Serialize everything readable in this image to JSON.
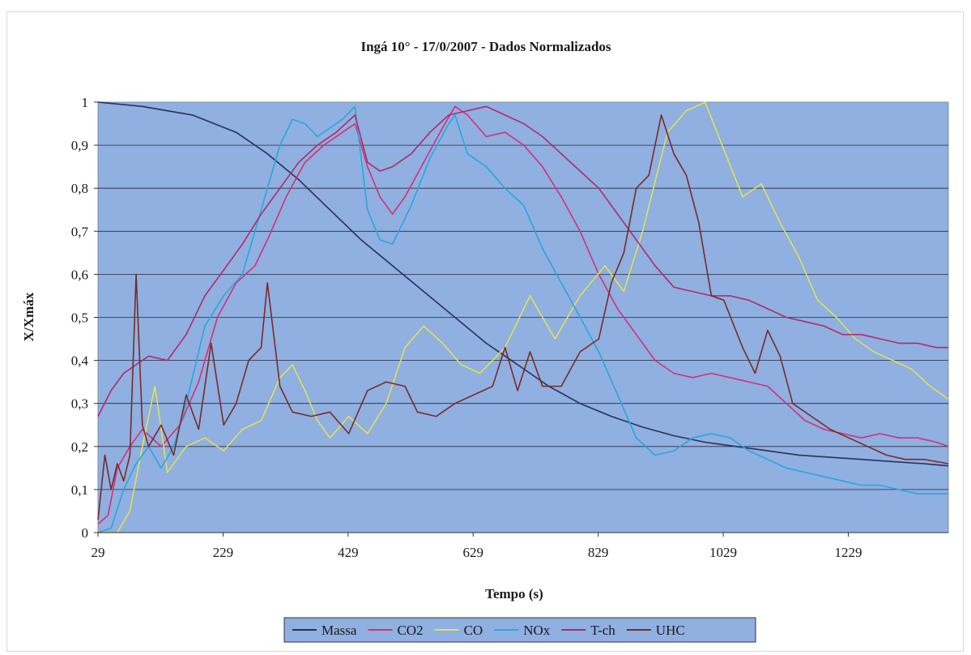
{
  "chart_data": {
    "type": "line",
    "title": "Ingá 10°  - 17/0/2007 - Dados Normalizados",
    "xlabel": "Tempo (s)",
    "ylabel": "X/Xmáx",
    "xlim": [
      29,
      1389
    ],
    "ylim": [
      0,
      1
    ],
    "x_ticks": [
      "29",
      "229",
      "429",
      "629",
      "829",
      "1029",
      "1229"
    ],
    "x_tick_values": [
      29,
      229,
      429,
      629,
      829,
      1029,
      1229
    ],
    "y_ticks": [
      "0",
      "0,1",
      "0,2",
      "0,3",
      "0,4",
      "0,5",
      "0,6",
      "0,7",
      "0,8",
      "0,9",
      "1"
    ],
    "y_tick_values": [
      0,
      0.1,
      0.2,
      0.3,
      0.4,
      0.5,
      0.6,
      0.7,
      0.8,
      0.9,
      1
    ],
    "grid": true,
    "legend_position": "bottom",
    "plot_background": "#8fb0e0",
    "series": [
      {
        "name": "Massa",
        "color": "#2b2f5a",
        "points": [
          [
            29,
            1
          ],
          [
            100,
            0.99
          ],
          [
            180,
            0.97
          ],
          [
            250,
            0.93
          ],
          [
            300,
            0.88
          ],
          [
            350,
            0.82
          ],
          [
            400,
            0.75
          ],
          [
            450,
            0.68
          ],
          [
            500,
            0.62
          ],
          [
            550,
            0.56
          ],
          [
            600,
            0.5
          ],
          [
            650,
            0.44
          ],
          [
            700,
            0.39
          ],
          [
            750,
            0.34
          ],
          [
            800,
            0.3
          ],
          [
            850,
            0.27
          ],
          [
            900,
            0.245
          ],
          [
            950,
            0.225
          ],
          [
            1000,
            0.21
          ],
          [
            1050,
            0.2
          ],
          [
            1100,
            0.19
          ],
          [
            1150,
            0.18
          ],
          [
            1200,
            0.175
          ],
          [
            1250,
            0.17
          ],
          [
            1300,
            0.165
          ],
          [
            1350,
            0.16
          ],
          [
            1389,
            0.155
          ]
        ]
      },
      {
        "name": "CO2",
        "color": "#d4307a",
        "points": [
          [
            29,
            0.02
          ],
          [
            45,
            0.04
          ],
          [
            60,
            0.15
          ],
          [
            80,
            0.2
          ],
          [
            100,
            0.24
          ],
          [
            130,
            0.2
          ],
          [
            160,
            0.25
          ],
          [
            190,
            0.35
          ],
          [
            220,
            0.5
          ],
          [
            250,
            0.58
          ],
          [
            280,
            0.62
          ],
          [
            300,
            0.68
          ],
          [
            330,
            0.78
          ],
          [
            360,
            0.86
          ],
          [
            390,
            0.9
          ],
          [
            420,
            0.93
          ],
          [
            440,
            0.95
          ],
          [
            460,
            0.85
          ],
          [
            480,
            0.78
          ],
          [
            500,
            0.74
          ],
          [
            520,
            0.78
          ],
          [
            550,
            0.86
          ],
          [
            580,
            0.94
          ],
          [
            600,
            0.99
          ],
          [
            620,
            0.97
          ],
          [
            650,
            0.92
          ],
          [
            680,
            0.93
          ],
          [
            710,
            0.9
          ],
          [
            740,
            0.85
          ],
          [
            770,
            0.78
          ],
          [
            800,
            0.7
          ],
          [
            830,
            0.6
          ],
          [
            860,
            0.52
          ],
          [
            890,
            0.46
          ],
          [
            920,
            0.4
          ],
          [
            950,
            0.37
          ],
          [
            980,
            0.36
          ],
          [
            1010,
            0.37
          ],
          [
            1040,
            0.36
          ],
          [
            1070,
            0.35
          ],
          [
            1100,
            0.34
          ],
          [
            1130,
            0.3
          ],
          [
            1160,
            0.26
          ],
          [
            1190,
            0.24
          ],
          [
            1220,
            0.23
          ],
          [
            1250,
            0.22
          ],
          [
            1280,
            0.23
          ],
          [
            1310,
            0.22
          ],
          [
            1340,
            0.22
          ],
          [
            1370,
            0.21
          ],
          [
            1389,
            0.2
          ]
        ]
      },
      {
        "name": "CO",
        "color": "#e0e05a",
        "points": [
          [
            29,
            0
          ],
          [
            60,
            0
          ],
          [
            80,
            0.05
          ],
          [
            100,
            0.2
          ],
          [
            120,
            0.34
          ],
          [
            140,
            0.14
          ],
          [
            170,
            0.2
          ],
          [
            200,
            0.22
          ],
          [
            230,
            0.19
          ],
          [
            260,
            0.24
          ],
          [
            290,
            0.26
          ],
          [
            320,
            0.36
          ],
          [
            340,
            0.39
          ],
          [
            360,
            0.33
          ],
          [
            380,
            0.26
          ],
          [
            400,
            0.22
          ],
          [
            430,
            0.27
          ],
          [
            460,
            0.23
          ],
          [
            490,
            0.3
          ],
          [
            520,
            0.43
          ],
          [
            550,
            0.48
          ],
          [
            580,
            0.44
          ],
          [
            610,
            0.39
          ],
          [
            640,
            0.37
          ],
          [
            680,
            0.43
          ],
          [
            720,
            0.55
          ],
          [
            760,
            0.45
          ],
          [
            800,
            0.55
          ],
          [
            840,
            0.62
          ],
          [
            870,
            0.56
          ],
          [
            900,
            0.7
          ],
          [
            940,
            0.93
          ],
          [
            970,
            0.98
          ],
          [
            1000,
            1
          ],
          [
            1030,
            0.89
          ],
          [
            1060,
            0.78
          ],
          [
            1090,
            0.81
          ],
          [
            1120,
            0.72
          ],
          [
            1150,
            0.64
          ],
          [
            1180,
            0.54
          ],
          [
            1210,
            0.5
          ],
          [
            1240,
            0.45
          ],
          [
            1270,
            0.42
          ],
          [
            1300,
            0.4
          ],
          [
            1330,
            0.38
          ],
          [
            1360,
            0.34
          ],
          [
            1389,
            0.31
          ]
        ]
      },
      {
        "name": "NOx",
        "color": "#2aa6e0",
        "points": [
          [
            29,
            0
          ],
          [
            50,
            0.01
          ],
          [
            70,
            0.1
          ],
          [
            90,
            0.16
          ],
          [
            110,
            0.2
          ],
          [
            130,
            0.15
          ],
          [
            150,
            0.2
          ],
          [
            170,
            0.3
          ],
          [
            200,
            0.48
          ],
          [
            230,
            0.55
          ],
          [
            260,
            0.6
          ],
          [
            280,
            0.7
          ],
          [
            300,
            0.8
          ],
          [
            320,
            0.9
          ],
          [
            340,
            0.96
          ],
          [
            360,
            0.95
          ],
          [
            380,
            0.92
          ],
          [
            400,
            0.94
          ],
          [
            420,
            0.96
          ],
          [
            440,
            0.99
          ],
          [
            460,
            0.75
          ],
          [
            480,
            0.68
          ],
          [
            500,
            0.67
          ],
          [
            530,
            0.76
          ],
          [
            560,
            0.87
          ],
          [
            590,
            0.95
          ],
          [
            600,
            0.97
          ],
          [
            620,
            0.88
          ],
          [
            650,
            0.85
          ],
          [
            680,
            0.8
          ],
          [
            710,
            0.76
          ],
          [
            740,
            0.66
          ],
          [
            770,
            0.58
          ],
          [
            800,
            0.5
          ],
          [
            830,
            0.42
          ],
          [
            860,
            0.32
          ],
          [
            890,
            0.22
          ],
          [
            920,
            0.18
          ],
          [
            950,
            0.19
          ],
          [
            980,
            0.22
          ],
          [
            1010,
            0.23
          ],
          [
            1040,
            0.22
          ],
          [
            1070,
            0.19
          ],
          [
            1100,
            0.17
          ],
          [
            1130,
            0.15
          ],
          [
            1160,
            0.14
          ],
          [
            1190,
            0.13
          ],
          [
            1220,
            0.12
          ],
          [
            1250,
            0.11
          ],
          [
            1280,
            0.11
          ],
          [
            1310,
            0.1
          ],
          [
            1340,
            0.09
          ],
          [
            1370,
            0.09
          ],
          [
            1389,
            0.09
          ]
        ]
      },
      {
        "name": "T-ch",
        "color": "#b02a6e",
        "points": [
          [
            29,
            0.27
          ],
          [
            50,
            0.33
          ],
          [
            70,
            0.37
          ],
          [
            90,
            0.39
          ],
          [
            110,
            0.41
          ],
          [
            140,
            0.4
          ],
          [
            170,
            0.46
          ],
          [
            200,
            0.55
          ],
          [
            230,
            0.61
          ],
          [
            260,
            0.67
          ],
          [
            290,
            0.74
          ],
          [
            320,
            0.8
          ],
          [
            350,
            0.86
          ],
          [
            380,
            0.9
          ],
          [
            410,
            0.93
          ],
          [
            440,
            0.97
          ],
          [
            460,
            0.86
          ],
          [
            480,
            0.84
          ],
          [
            500,
            0.85
          ],
          [
            530,
            0.88
          ],
          [
            560,
            0.93
          ],
          [
            590,
            0.97
          ],
          [
            620,
            0.98
          ],
          [
            650,
            0.99
          ],
          [
            680,
            0.97
          ],
          [
            710,
            0.95
          ],
          [
            740,
            0.92
          ],
          [
            770,
            0.88
          ],
          [
            800,
            0.84
          ],
          [
            830,
            0.8
          ],
          [
            860,
            0.74
          ],
          [
            890,
            0.68
          ],
          [
            920,
            0.62
          ],
          [
            950,
            0.57
          ],
          [
            980,
            0.56
          ],
          [
            1010,
            0.55
          ],
          [
            1040,
            0.55
          ],
          [
            1070,
            0.54
          ],
          [
            1100,
            0.52
          ],
          [
            1130,
            0.5
          ],
          [
            1160,
            0.49
          ],
          [
            1190,
            0.48
          ],
          [
            1220,
            0.46
          ],
          [
            1250,
            0.46
          ],
          [
            1280,
            0.45
          ],
          [
            1310,
            0.44
          ],
          [
            1340,
            0.44
          ],
          [
            1370,
            0.43
          ],
          [
            1389,
            0.43
          ]
        ]
      },
      {
        "name": "UHC",
        "color": "#7a2a2a",
        "points": [
          [
            29,
            0.03
          ],
          [
            40,
            0.18
          ],
          [
            50,
            0.1
          ],
          [
            60,
            0.16
          ],
          [
            70,
            0.12
          ],
          [
            80,
            0.18
          ],
          [
            90,
            0.6
          ],
          [
            100,
            0.25
          ],
          [
            110,
            0.2
          ],
          [
            130,
            0.25
          ],
          [
            150,
            0.18
          ],
          [
            170,
            0.32
          ],
          [
            190,
            0.24
          ],
          [
            210,
            0.44
          ],
          [
            230,
            0.25
          ],
          [
            250,
            0.3
          ],
          [
            270,
            0.4
          ],
          [
            290,
            0.43
          ],
          [
            300,
            0.58
          ],
          [
            320,
            0.34
          ],
          [
            340,
            0.28
          ],
          [
            370,
            0.27
          ],
          [
            400,
            0.28
          ],
          [
            430,
            0.23
          ],
          [
            460,
            0.33
          ],
          [
            490,
            0.35
          ],
          [
            520,
            0.34
          ],
          [
            540,
            0.28
          ],
          [
            570,
            0.27
          ],
          [
            600,
            0.3
          ],
          [
            630,
            0.32
          ],
          [
            660,
            0.34
          ],
          [
            680,
            0.43
          ],
          [
            700,
            0.33
          ],
          [
            720,
            0.42
          ],
          [
            740,
            0.34
          ],
          [
            770,
            0.34
          ],
          [
            800,
            0.42
          ],
          [
            830,
            0.45
          ],
          [
            850,
            0.58
          ],
          [
            870,
            0.65
          ],
          [
            890,
            0.8
          ],
          [
            910,
            0.83
          ],
          [
            930,
            0.97
          ],
          [
            950,
            0.88
          ],
          [
            970,
            0.83
          ],
          [
            990,
            0.72
          ],
          [
            1010,
            0.55
          ],
          [
            1030,
            0.54
          ],
          [
            1060,
            0.43
          ],
          [
            1080,
            0.37
          ],
          [
            1100,
            0.47
          ],
          [
            1120,
            0.41
          ],
          [
            1140,
            0.3
          ],
          [
            1170,
            0.27
          ],
          [
            1200,
            0.24
          ],
          [
            1230,
            0.22
          ],
          [
            1260,
            0.2
          ],
          [
            1290,
            0.18
          ],
          [
            1320,
            0.17
          ],
          [
            1350,
            0.17
          ],
          [
            1389,
            0.16
          ]
        ]
      }
    ]
  }
}
